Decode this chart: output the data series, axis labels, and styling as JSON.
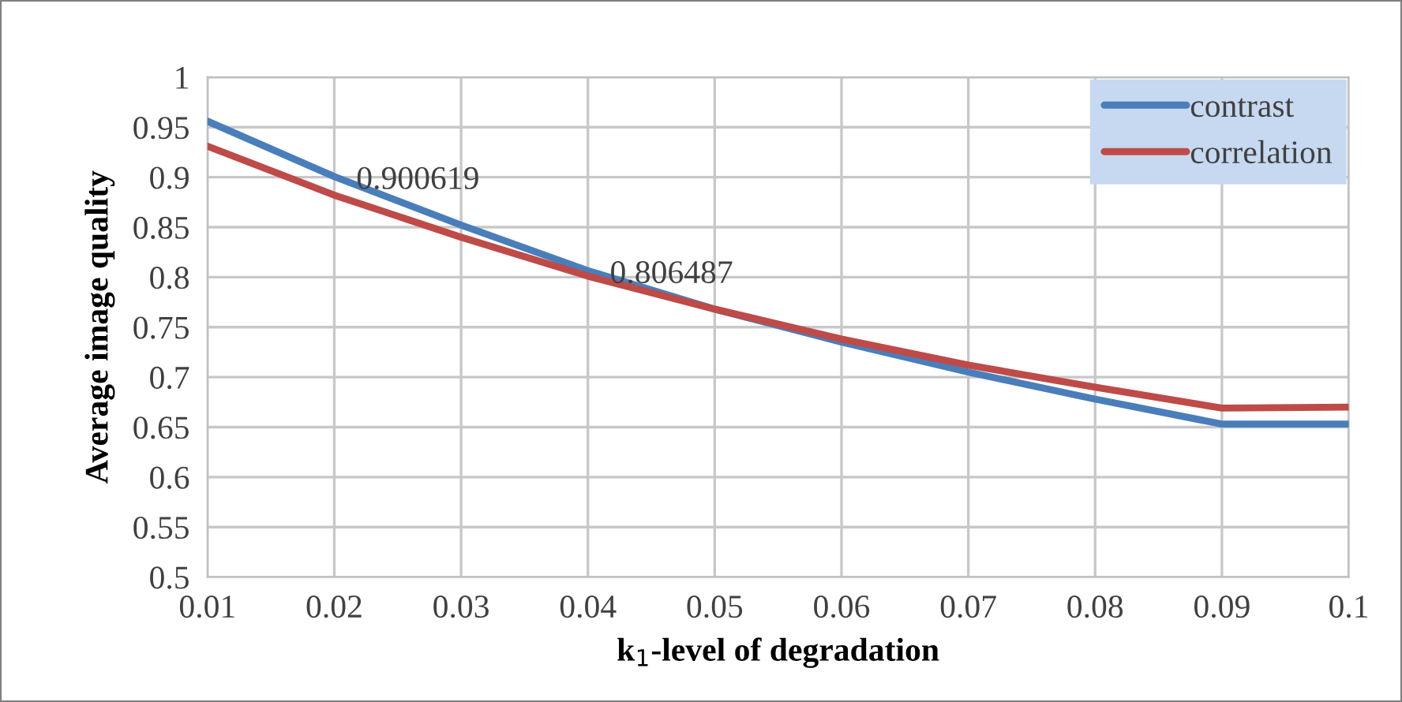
{
  "chart_data": {
    "type": "line",
    "xlabel": "k$_{1}$-level of degradation",
    "ylabel": "Average image quality",
    "x": [
      0.01,
      0.02,
      0.03,
      0.04,
      0.05,
      0.06,
      0.07,
      0.08,
      0.09,
      0.1
    ],
    "series": [
      {
        "name": "contrast",
        "color": "#4a7ebb",
        "values": [
          0.956,
          0.900619,
          0.852,
          0.806487,
          0.768,
          0.735,
          0.705,
          0.678,
          0.653,
          0.653
        ],
        "value_labels": [
          null,
          "0.900619",
          null,
          "0.806487",
          null,
          null,
          null,
          null,
          null,
          null
        ]
      },
      {
        "name": "correlation",
        "color": "#be4b48",
        "values": [
          0.931,
          0.882,
          0.84,
          0.801,
          0.768,
          0.738,
          0.712,
          0.69,
          0.669,
          0.67
        ]
      }
    ],
    "xlim": [
      0.01,
      0.1
    ],
    "xticks": [
      0.01,
      0.02,
      0.03,
      0.04,
      0.05,
      0.06,
      0.07,
      0.08,
      0.09,
      0.1
    ],
    "ylim": [
      0.5,
      1
    ],
    "yticks": [
      0.5,
      0.55,
      0.6,
      0.65,
      0.7,
      0.75,
      0.8,
      0.85,
      0.9,
      0.95,
      1
    ],
    "grid": true,
    "legend": "top right"
  }
}
